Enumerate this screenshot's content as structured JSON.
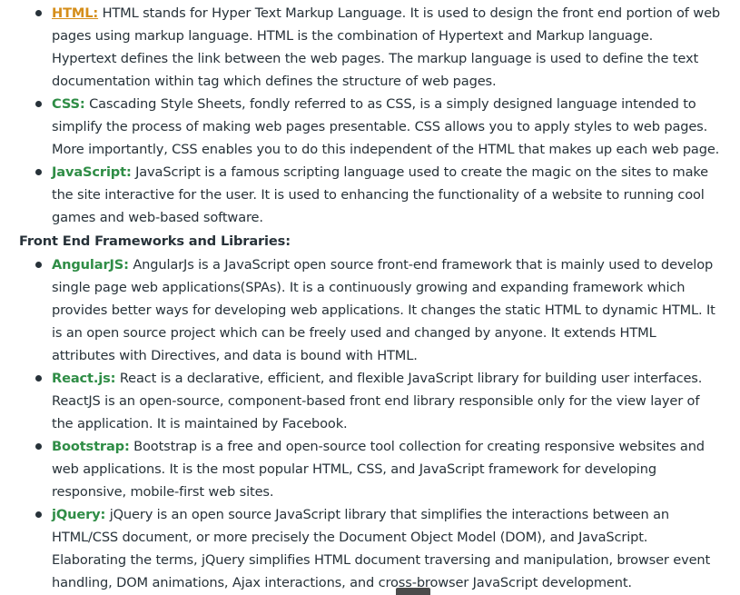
{
  "colors": {
    "text": "#273239",
    "term_green": "#2f8d46",
    "link_orange": "#d58e1a"
  },
  "frontend_list": [
    {
      "term": "HTML:",
      "desc": " HTML stands for Hyper Text Markup Language. It is used to design the front end portion of web pages using markup language. HTML is the combination of Hypertext and Markup language. Hypertext defines the link between the web pages. The markup language is used to define the text documentation within tag which defines the structure of web pages."
    },
    {
      "term": "CSS:",
      "desc": " Cascading Style Sheets, fondly referred to as CSS, is a simply designed language intended to simplify the process of making web pages presentable. CSS allows you to apply styles to web pages. More importantly, CSS enables you to do this independent of the HTML that makes up each web page."
    },
    {
      "term": "JavaScript",
      "sep": ":",
      "desc": " JavaScript is a famous scripting language used to create the magic on the sites to make the site interactive for the user. It is used to enhancing the functionality of a website to running cool games and web-based software."
    }
  ],
  "frameworks_heading": "Front End Frameworks and Libraries:",
  "frameworks_list": [
    {
      "term": "AngularJS",
      "sep": ":",
      "desc": " AngularJs is a JavaScript open source front-end framework that is mainly used to develop single page web applications(SPAs). It is a continuously growing and expanding framework which provides better ways for developing web applications. It changes the static HTML to dynamic HTML. It is an open source project which can be freely used and changed by anyone. It extends HTML attributes with Directives, and data is bound with HTML."
    },
    {
      "term": "React.js",
      "sep": ":",
      "desc": " React is a declarative, efficient, and flexible JavaScript library for building user interfaces. ReactJS is an open-source, component-based front end library responsible only for the view layer of the application. It is maintained by Facebook."
    },
    {
      "term": "Bootstrap",
      "sep": ":",
      "desc": " Bootstrap is a free and open-source tool collection for creating responsive websites and web applications. It is the most popular HTML, CSS, and JavaScript framework for developing responsive, mobile-first web sites."
    },
    {
      "term": "jQuery",
      "sep": ":",
      "desc": " jQuery is an open source JavaScript library that simplifies the interactions between an HTML/CSS document, or more precisely the Document Object Model (DOM), and JavaScript. Elaborating the terms, jQuery simplifies HTML document traversing and manipulation, browser event handling, DOM animations, Ajax interactions, and cross-browser JavaScript development."
    }
  ]
}
